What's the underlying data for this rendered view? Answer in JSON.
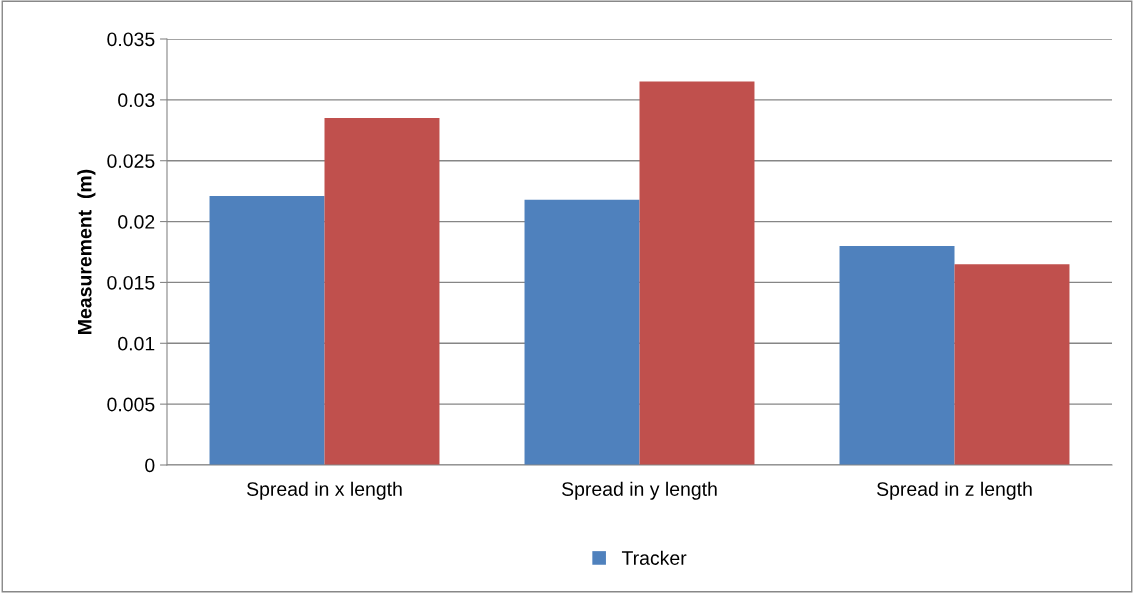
{
  "chart_data": {
    "type": "bar",
    "ylabel": "Measurement  (m)",
    "categories": [
      "Spread in x length",
      "Spread in y length",
      "Spread in z length"
    ],
    "series": [
      {
        "name": "Tracker",
        "color": "#4f81bd",
        "values": [
          0.0221,
          0.0218,
          0.018
        ]
      },
      {
        "color": "#c0504d",
        "values": [
          0.0285,
          0.0315,
          0.0165
        ]
      }
    ],
    "ylim": [
      0,
      0.035
    ],
    "yticks": [
      0,
      0.005,
      0.01,
      0.015,
      0.02,
      0.025,
      0.03,
      0.035
    ],
    "grid": "y",
    "legend": "bottom"
  }
}
